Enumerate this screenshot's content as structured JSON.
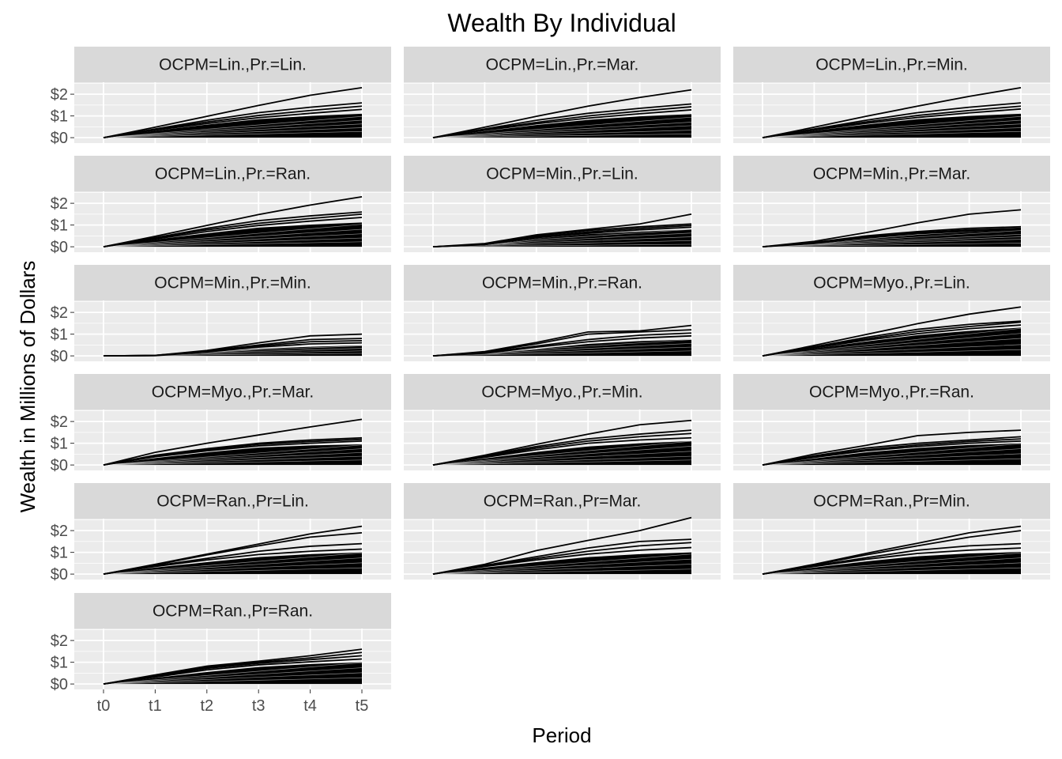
{
  "chart_data": {
    "type": "line",
    "title": "Wealth By Individual",
    "xlabel": "Period",
    "ylabel": "Wealth in Millions of Dollars",
    "x": [
      "t0",
      "t1",
      "t2",
      "t3",
      "t4",
      "t5"
    ],
    "y_ticks": [
      0,
      1,
      2
    ],
    "y_tick_labels": [
      "$0",
      "$1",
      "$2"
    ],
    "ylim": [
      -0.25,
      2.55
    ],
    "grid": true,
    "colors": {
      "line": "#000000",
      "panel_bg": "#ebebeb",
      "strip_bg": "#d9d9d9",
      "grid": "#ffffff"
    },
    "facets": [
      {
        "label": "OCPM=Lin.,Pr.=Lin.",
        "top_lines": [
          [
            0,
            0.48,
            0.98,
            1.48,
            1.95,
            2.3
          ],
          [
            0,
            0.4,
            0.8,
            1.15,
            1.4,
            1.6
          ],
          [
            0,
            0.38,
            0.72,
            1.02,
            1.25,
            1.45
          ],
          [
            0,
            0.35,
            0.65,
            0.92,
            1.12,
            1.3
          ]
        ],
        "fill_top": [
          0,
          0.32,
          0.6,
          0.85,
          1.0,
          1.1
        ],
        "gaps": [
          0.85,
          0.7,
          0.55,
          0.4,
          0.25
        ]
      },
      {
        "label": "OCPM=Lin.,Pr.=Mar.",
        "top_lines": [
          [
            0,
            0.48,
            0.98,
            1.45,
            1.85,
            2.2
          ],
          [
            0,
            0.4,
            0.8,
            1.12,
            1.35,
            1.55
          ],
          [
            0,
            0.37,
            0.7,
            1.0,
            1.22,
            1.42
          ],
          [
            0,
            0.34,
            0.64,
            0.9,
            1.1,
            1.28
          ]
        ],
        "fill_top": [
          0,
          0.3,
          0.58,
          0.82,
          0.98,
          1.08
        ],
        "gaps": [
          0.82,
          0.62,
          0.48,
          0.3,
          0.15
        ]
      },
      {
        "label": "OCPM=Lin.,Pr.=Min.",
        "top_lines": [
          [
            0,
            0.48,
            0.98,
            1.45,
            1.9,
            2.3
          ],
          [
            0,
            0.4,
            0.8,
            1.15,
            1.4,
            1.6
          ],
          [
            0,
            0.38,
            0.72,
            1.02,
            1.25,
            1.45
          ],
          [
            0,
            0.35,
            0.66,
            0.93,
            1.14,
            1.32
          ]
        ],
        "fill_top": [
          0,
          0.32,
          0.6,
          0.85,
          1.0,
          1.1
        ],
        "gaps": [
          0.85,
          0.7,
          0.55,
          0.4,
          0.25
        ]
      },
      {
        "label": "OCPM=Lin.,Pr.=Ran.",
        "top_lines": [
          [
            0,
            0.48,
            0.98,
            1.48,
            1.92,
            2.3
          ],
          [
            0,
            0.42,
            0.85,
            1.2,
            1.42,
            1.6
          ],
          [
            0,
            0.4,
            0.78,
            1.08,
            1.3,
            1.5
          ],
          [
            0,
            0.36,
            0.7,
            0.98,
            1.18,
            1.35
          ]
        ],
        "fill_top": [
          0,
          0.33,
          0.62,
          0.88,
          1.02,
          1.12
        ],
        "gaps": [
          0.9,
          0.7,
          0.52,
          0.35,
          0.2
        ]
      },
      {
        "label": "OCPM=Min.,Pr.=Lin.",
        "top_lines": [
          [
            0,
            0.15,
            0.55,
            0.8,
            1.05,
            1.5
          ],
          [
            0,
            0.12,
            0.5,
            0.75,
            0.92,
            1.05
          ],
          [
            0,
            0.1,
            0.45,
            0.68,
            0.85,
            0.98
          ],
          [
            0,
            0.1,
            0.42,
            0.62,
            0.78,
            0.9
          ]
        ],
        "fill_top": [
          0,
          0.08,
          0.38,
          0.58,
          0.7,
          0.8
        ],
        "gaps": [
          0.7,
          0.55,
          0.4,
          0.25,
          0.1
        ]
      },
      {
        "label": "OCPM=Min.,Pr.=Mar.",
        "top_lines": [
          [
            0,
            0.25,
            0.65,
            1.1,
            1.5,
            1.7
          ],
          [
            0,
            0.2,
            0.5,
            0.7,
            0.85,
            0.92
          ],
          [
            0,
            0.18,
            0.45,
            0.65,
            0.78,
            0.85
          ],
          [
            0,
            0.15,
            0.4,
            0.6,
            0.72,
            0.8
          ]
        ],
        "fill_top": [
          0,
          0.12,
          0.35,
          0.55,
          0.68,
          0.78
        ],
        "gaps": [
          0.65,
          0.5,
          0.4,
          0.3,
          0.15
        ]
      },
      {
        "label": "OCPM=Min.,Pr.=Min.",
        "top_lines": [
          [
            0,
            0.02,
            0.25,
            0.6,
            0.92,
            1.0
          ],
          [
            0,
            0.02,
            0.22,
            0.5,
            0.75,
            0.8
          ],
          [
            0,
            0.02,
            0.2,
            0.45,
            0.65,
            0.7
          ],
          [
            0,
            0.01,
            0.18,
            0.4,
            0.55,
            0.6
          ]
        ],
        "fill_top": [
          0,
          0.01,
          0.15,
          0.32,
          0.42,
          0.48
        ],
        "gaps": [
          0.4,
          0.3,
          0.2,
          0.1
        ]
      },
      {
        "label": "OCPM=Min.,Pr.=Ran.",
        "top_lines": [
          [
            0,
            0.2,
            0.62,
            1.1,
            1.15,
            1.4
          ],
          [
            0,
            0.18,
            0.55,
            1.0,
            1.1,
            1.2
          ],
          [
            0,
            0.15,
            0.45,
            0.75,
            0.95,
            1.05
          ],
          [
            0,
            0.12,
            0.4,
            0.65,
            0.82,
            0.92
          ]
        ],
        "fill_top": [
          0,
          0.1,
          0.32,
          0.55,
          0.68,
          0.75
        ],
        "gaps": [
          0.65,
          0.5,
          0.35,
          0.2
        ]
      },
      {
        "label": "OCPM=Myo.,Pr.=Lin.",
        "top_lines": [
          [
            0,
            0.48,
            0.98,
            1.48,
            1.92,
            2.25
          ],
          [
            0,
            0.42,
            0.85,
            1.22,
            1.45,
            1.6
          ],
          [
            0,
            0.4,
            0.78,
            1.12,
            1.35,
            1.55
          ],
          [
            0,
            0.37,
            0.72,
            1.02,
            1.25,
            1.42
          ]
        ],
        "fill_top": [
          0,
          0.34,
          0.66,
          0.95,
          1.15,
          1.3
        ],
        "gaps": [
          1.1,
          0.9,
          0.7,
          0.45,
          0.25
        ]
      },
      {
        "label": "OCPM=Myo.,Pr.=Mar.",
        "top_lines": [
          [
            0,
            0.58,
            1.0,
            1.38,
            1.75,
            2.1
          ],
          [
            0,
            0.45,
            0.75,
            1.0,
            1.15,
            1.25
          ],
          [
            0,
            0.42,
            0.7,
            0.95,
            1.08,
            1.18
          ],
          [
            0,
            0.38,
            0.65,
            0.88,
            1.0,
            1.1
          ]
        ],
        "fill_top": [
          0,
          0.32,
          0.58,
          0.8,
          0.9,
          0.95
        ],
        "gaps": [
          0.8,
          0.65,
          0.5,
          0.35,
          0.2
        ]
      },
      {
        "label": "OCPM=Myo.,Pr.=Min.",
        "top_lines": [
          [
            0,
            0.45,
            0.95,
            1.42,
            1.85,
            2.05
          ],
          [
            0,
            0.42,
            0.85,
            1.2,
            1.42,
            1.6
          ],
          [
            0,
            0.38,
            0.78,
            1.1,
            1.3,
            1.45
          ],
          [
            0,
            0.35,
            0.7,
            1.0,
            1.15,
            1.25
          ]
        ],
        "fill_top": [
          0,
          0.3,
          0.6,
          0.85,
          1.0,
          1.1
        ],
        "gaps": [
          0.95,
          0.75,
          0.55,
          0.35,
          0.2
        ]
      },
      {
        "label": "OCPM=Myo.,Pr.=Ran.",
        "top_lines": [
          [
            0,
            0.5,
            0.9,
            1.35,
            1.5,
            1.6
          ],
          [
            0,
            0.42,
            0.78,
            1.0,
            1.15,
            1.3
          ],
          [
            0,
            0.38,
            0.7,
            0.92,
            1.08,
            1.2
          ],
          [
            0,
            0.35,
            0.65,
            0.85,
            1.0,
            1.1
          ]
        ],
        "fill_top": [
          0,
          0.3,
          0.58,
          0.78,
          0.92,
          1.0
        ],
        "gaps": [
          0.85,
          0.65,
          0.45,
          0.25
        ]
      },
      {
        "label": "OCPM=Ran.,Pr=Lin.",
        "top_lines": [
          [
            0,
            0.45,
            0.92,
            1.38,
            1.85,
            2.2
          ],
          [
            0,
            0.42,
            0.88,
            1.3,
            1.7,
            1.9
          ],
          [
            0,
            0.38,
            0.72,
            1.05,
            1.28,
            1.4
          ],
          [
            0,
            0.35,
            0.65,
            0.9,
            1.05,
            1.15
          ]
        ],
        "fill_top": [
          0,
          0.3,
          0.55,
          0.78,
          0.92,
          1.0
        ],
        "gaps": [
          0.85,
          0.65,
          0.45,
          0.25
        ]
      },
      {
        "label": "OCPM=Ran.,Pr=Mar.",
        "top_lines": [
          [
            0,
            0.45,
            1.08,
            1.55,
            2.0,
            2.6
          ],
          [
            0,
            0.4,
            0.8,
            1.2,
            1.5,
            1.6
          ],
          [
            0,
            0.38,
            0.72,
            1.05,
            1.3,
            1.45
          ],
          [
            0,
            0.35,
            0.65,
            0.92,
            1.1,
            1.22
          ]
        ],
        "fill_top": [
          0,
          0.3,
          0.55,
          0.78,
          0.92,
          1.0
        ],
        "gaps": [
          0.8,
          0.6,
          0.4,
          0.2
        ]
      },
      {
        "label": "OCPM=Ran.,Pr=Min.",
        "top_lines": [
          [
            0,
            0.45,
            0.95,
            1.42,
            1.9,
            2.2
          ],
          [
            0,
            0.42,
            0.88,
            1.3,
            1.7,
            2.0
          ],
          [
            0,
            0.38,
            0.75,
            1.1,
            1.3,
            1.4
          ],
          [
            0,
            0.35,
            0.68,
            0.95,
            1.1,
            1.2
          ]
        ],
        "fill_top": [
          0,
          0.3,
          0.58,
          0.82,
          0.95,
          1.02
        ],
        "gaps": [
          0.85,
          0.65,
          0.45,
          0.25
        ]
      },
      {
        "label": "OCPM=Ran.,Pr=Ran.",
        "top_lines": [
          [
            0,
            0.42,
            0.82,
            1.05,
            1.3,
            1.6
          ],
          [
            0,
            0.38,
            0.78,
            1.0,
            1.2,
            1.45
          ],
          [
            0,
            0.35,
            0.72,
            0.95,
            1.12,
            1.3
          ],
          [
            0,
            0.32,
            0.65,
            0.88,
            1.02,
            1.15
          ]
        ],
        "fill_top": [
          0,
          0.28,
          0.55,
          0.78,
          0.92,
          1.0
        ],
        "gaps": [
          0.85,
          0.65,
          0.45,
          0.25
        ]
      }
    ]
  }
}
